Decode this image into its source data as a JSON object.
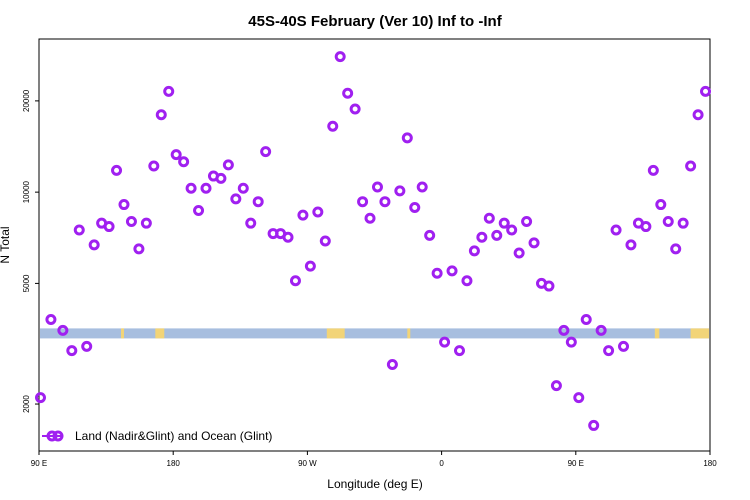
{
  "chart_data": {
    "type": "scatter",
    "title": "45S-40S February (Ver 10)   Inf to -Inf",
    "xlabel": "Longitude (deg E)",
    "ylabel": "N Total",
    "x_tick_labels": [
      "90 E",
      "180",
      "90 W",
      "0",
      "90 E",
      "180"
    ],
    "x_ticks": [
      90,
      180,
      270,
      360,
      450,
      540
    ],
    "xlim": [
      90,
      540
    ],
    "y_tick_labels": [
      "2000",
      "5000",
      "10000",
      "20000"
    ],
    "y_ticks": [
      2000,
      5000,
      10000,
      20000
    ],
    "y_scale": "log",
    "ylim": [
      1400,
      32000
    ],
    "grid": false,
    "legend_position": "bottom-left",
    "legend": [
      "Land (Nadir&Glint) and Ocean (Glint)"
    ],
    "series": [
      {
        "name": "Land (Nadir&Glint) and Ocean (Glint)",
        "color": "#a020f0",
        "x": [
          91,
          98,
          106,
          112,
          117,
          122,
          127,
          132,
          137,
          142,
          147,
          152,
          157,
          162,
          167,
          172,
          177,
          182,
          187,
          192,
          197,
          202,
          207,
          212,
          217,
          222,
          227,
          232,
          237,
          242,
          247,
          252,
          257,
          262,
          267,
          272,
          277,
          282,
          287,
          292,
          297,
          302,
          307,
          312,
          317,
          322,
          327,
          332,
          337,
          342,
          347,
          352,
          357,
          362,
          367,
          372,
          377,
          382,
          387,
          392,
          397,
          402,
          407,
          412,
          417,
          422,
          427,
          432,
          437,
          442,
          447,
          452,
          457,
          462,
          467,
          472,
          477,
          482,
          487,
          492,
          497,
          502,
          507,
          512,
          517,
          522,
          527,
          532,
          537
        ],
        "y": [
          2100,
          3800,
          3500,
          3000,
          7500,
          3100,
          6700,
          7900,
          7700,
          11800,
          9100,
          8000,
          6500,
          7900,
          12200,
          18000,
          21500,
          13300,
          12600,
          10300,
          8700,
          10300,
          11300,
          11100,
          12300,
          9500,
          10300,
          7900,
          9300,
          13600,
          7300,
          7300,
          7100,
          5100,
          8400,
          5700,
          8600,
          6900,
          16500,
          28000,
          21200,
          18800,
          9300,
          8200,
          10400,
          9300,
          2700,
          10100,
          15100,
          8900,
          10400,
          7200,
          5400,
          3200,
          5500,
          3000,
          5100,
          6400,
          7100,
          8200,
          7200,
          7900,
          7500,
          6300,
          8000,
          6800,
          5000,
          4900,
          2300,
          3500,
          3200,
          2100,
          3800,
          1700,
          3500,
          3000,
          7500,
          3100,
          6700,
          7900,
          7700,
          11800,
          9100,
          8000,
          6500,
          7900,
          12200,
          18000,
          21500
        ]
      }
    ],
    "band": {
      "y_log_center": 3420,
      "color": "#a7bedf",
      "land_color": "#f2d478",
      "land_segments_x": [
        [
          145,
          147
        ],
        [
          168,
          174
        ],
        [
          283,
          295
        ],
        [
          337,
          339
        ],
        [
          503,
          506
        ],
        [
          527,
          541
        ]
      ]
    }
  }
}
